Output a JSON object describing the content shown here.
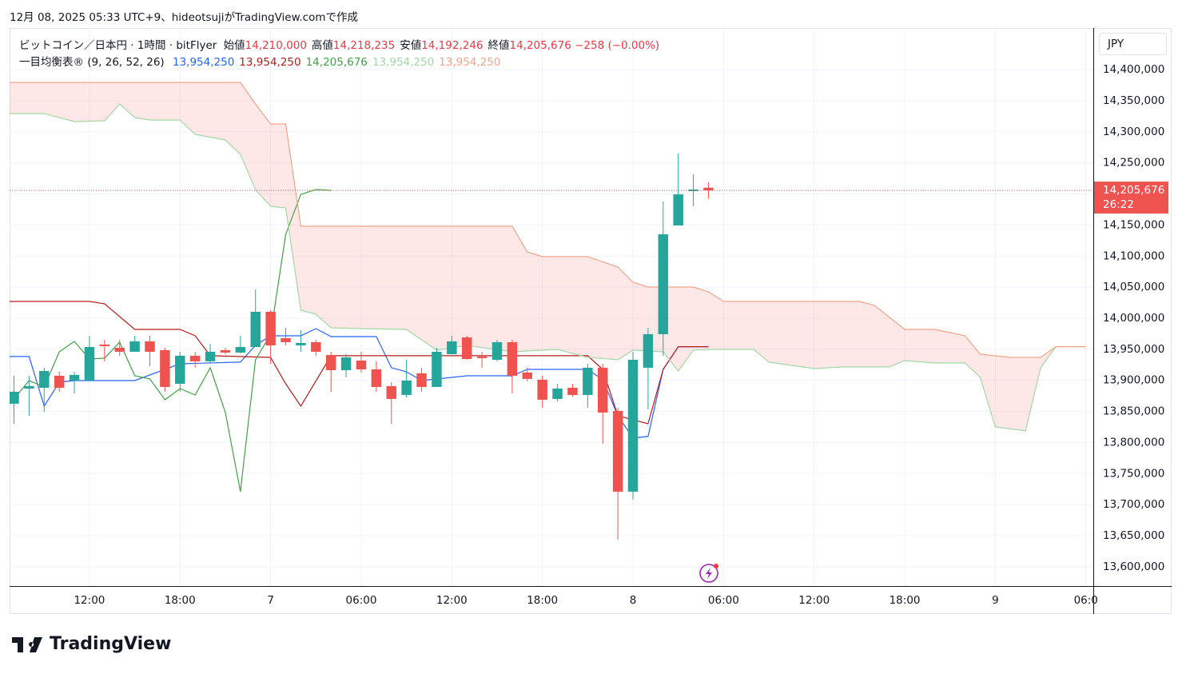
{
  "header": {
    "created": "12月 08, 2025 05:33 UTC+9、hideotsujiがTradingView.comで作成",
    "symbol": "ビットコイン／日本円 · 1時間 · bitFlyer",
    "ohlc": [
      {
        "label": "始値",
        "value": "14,210,000"
      },
      {
        "label": "高値",
        "value": "14,218,235"
      },
      {
        "label": "安値",
        "value": "14,192,246"
      },
      {
        "label": "終値",
        "value": "14,205,676"
      }
    ],
    "change": "−258 (−0.00%)",
    "indicator": {
      "label": "一目均衡表® (9, 26, 52, 26)",
      "values": [
        "13,954,250",
        "13,954,250",
        "14,205,676",
        "13,954,250",
        "13,954,250"
      ]
    }
  },
  "chart_data": {
    "type": "candlestick",
    "up_color": "#26a69a",
    "down_color": "#ef5350",
    "x": [
      7,
      8,
      9,
      10,
      11,
      12,
      13,
      14,
      15,
      16,
      17,
      18,
      19,
      20,
      21,
      22,
      23,
      24,
      25,
      26,
      27,
      28,
      29,
      30,
      31,
      32,
      33,
      34,
      35,
      36,
      37,
      38,
      39,
      40,
      41,
      42,
      43,
      44,
      45,
      46,
      47,
      48,
      49,
      50,
      51,
      52,
      53
    ],
    "open": [
      13862400,
      13886800,
      13888100,
      13907400,
      13899700,
      13899700,
      13957600,
      13952400,
      13946000,
      13962700,
      13948600,
      13894500,
      13939600,
      13930600,
      13948600,
      13944700,
      13953700,
      14010300,
      13967900,
      13956300,
      13961400,
      13940800,
      13916400,
      13931800,
      13917700,
      13890700,
      13876500,
      13911300,
      13889400,
      13942100,
      13969100,
      13938300,
      13933100,
      13961400,
      13912600,
      13901000,
      13870100,
      13888100,
      13876500,
      13920300,
      13850800,
      13720900,
      13920300,
      13974300,
      14149200,
      14204500,
      14210000
    ],
    "high": [
      13907400,
      13907400,
      13920300,
      13913800,
      13913800,
      13971700,
      13965300,
      13965300,
      13971700,
      13971700,
      13952400,
      13946000,
      13946000,
      13958900,
      13952400,
      13971700,
      14046300,
      14012900,
      13984600,
      13980700,
      13965300,
      13946000,
      13942100,
      13946000,
      13930600,
      13897100,
      13933100,
      13920300,
      13952400,
      13971700,
      13971700,
      13946000,
      13965300,
      13965300,
      13920300,
      13907400,
      13894500,
      13894500,
      13926700,
      13926700,
      13856000,
      13946000,
      13984600,
      14187800,
      14264900,
      14231500,
      14218235
    ],
    "low": [
      13830200,
      13843100,
      13849500,
      13881700,
      13879100,
      13899700,
      13930600,
      13939600,
      13946000,
      13922800,
      13881700,
      13881700,
      13920300,
      13926700,
      13942100,
      13943400,
      13953700,
      13926700,
      13956300,
      13946000,
      13939600,
      13881700,
      13904800,
      13912600,
      13881700,
      13830200,
      13872700,
      13881700,
      13889400,
      13942100,
      13933100,
      13920300,
      13930600,
      13879100,
      13898400,
      13856000,
      13866300,
      13874000,
      13856000,
      13798100,
      13643800,
      13708100,
      13853400,
      13939600,
      14149200,
      14180000,
      14192246
    ],
    "close": [
      13881700,
      13890700,
      13915100,
      13888100,
      13908700,
      13953700,
      13955000,
      13946000,
      13962700,
      13946000,
      13889400,
      13939600,
      13930600,
      13946000,
      13944700,
      13953700,
      14010300,
      13956300,
      13961400,
      13960100,
      13946000,
      13916400,
      13937000,
      13917700,
      13889400,
      13870100,
      13899700,
      13889400,
      13946000,
      13962700,
      13934400,
      13935700,
      13961400,
      13907400,
      13902300,
      13868800,
      13886800,
      13876500,
      13920300,
      13848200,
      13720900,
      13933100,
      13974300,
      14135000,
      14199300,
      14207000,
      14205676
    ],
    "lines": [
      {
        "color": "#2962ff",
        "x": [
          6.7,
          8,
          9,
          10,
          11,
          15,
          18,
          22,
          23,
          24,
          26,
          27,
          28,
          31,
          32,
          33,
          34,
          37,
          40,
          41,
          45,
          46,
          47,
          48,
          49,
          50,
          51,
          53
        ],
        "values": [
          13938300,
          13938300,
          13858500,
          13897100,
          13899700,
          13899700,
          13926700,
          13929300,
          13956300,
          13971700,
          13971700,
          13983300,
          13970400,
          13970400,
          13920300,
          13913800,
          13899700,
          13907400,
          13907400,
          13917700,
          13917700,
          13901000,
          13843100,
          13807100,
          13809700,
          13917700,
          13954250,
          13954250
        ]
      },
      {
        "color": "#b71c1c",
        "x": [
          6.7,
          12,
          13,
          15,
          18,
          19,
          20,
          24,
          25,
          26,
          28,
          45,
          46,
          47,
          49,
          50,
          51,
          53
        ],
        "values": [
          14027000,
          14027000,
          14023100,
          13982000,
          13982000,
          13971700,
          13939600,
          13937000,
          13894500,
          13858500,
          13939600,
          13939600,
          13917700,
          13843100,
          13830200,
          13917700,
          13954250,
          13954250
        ]
      },
      {
        "color": "#43a047",
        "x": [
          7,
          8,
          9,
          10,
          11,
          12,
          13,
          14,
          15,
          16,
          17,
          18,
          19,
          20,
          21,
          22,
          23,
          24,
          25,
          26,
          27,
          28
        ],
        "values": [
          13870100,
          13899700,
          13889400,
          13946000,
          13962700,
          13934400,
          13935700,
          13961400,
          13907400,
          13902300,
          13868800,
          13886800,
          13876500,
          13920300,
          13848200,
          13720900,
          13933100,
          13974300,
          14135000,
          14199300,
          14207000,
          14205676
        ]
      },
      {
        "color": "#a5d6a7",
        "x": [
          6.7,
          9,
          11,
          13,
          14,
          15,
          16,
          18,
          19,
          21,
          22,
          23,
          24,
          25,
          26,
          27,
          28,
          30,
          33,
          34,
          35,
          37,
          40,
          43,
          45,
          47,
          48,
          50,
          51,
          52,
          53,
          56,
          57,
          60,
          62,
          65,
          66,
          68,
          70,
          71,
          72,
          74,
          75,
          76,
          78
        ],
        "values": [
          14329200,
          14329200,
          14316400,
          14317600,
          14344600,
          14322800,
          14318900,
          14318900,
          14295800,
          14286800,
          14263600,
          14207000,
          14180000,
          14177500,
          14012900,
          14006400,
          13984600,
          13983300,
          13982000,
          13965300,
          13948600,
          13956300,
          13946000,
          13949800,
          13937000,
          13933100,
          13948600,
          13946000,
          13915100,
          13948600,
          13949800,
          13949800,
          13929300,
          13919000,
          13921600,
          13921600,
          13931800,
          13928000,
          13928000,
          13904800,
          13825100,
          13818700,
          13920300,
          13954250,
          13954250
        ]
      },
      {
        "color": "#f0a58a",
        "x": [
          6.7,
          22,
          23,
          24,
          25,
          26,
          40,
          41,
          42,
          45,
          47,
          48,
          49,
          52,
          53,
          54,
          63,
          64,
          66,
          68,
          70,
          71,
          73,
          75,
          76,
          78
        ],
        "values": [
          14379400,
          14379400,
          14344600,
          14312500,
          14312500,
          14147900,
          14147900,
          14106700,
          14099000,
          14099000,
          14082300,
          14057900,
          14050200,
          14050200,
          14042400,
          14027000,
          14027000,
          14020600,
          13982000,
          13982000,
          13971700,
          13942100,
          13937000,
          13937000,
          13954250,
          13954250
        ]
      }
    ],
    "cloud_color": "rgba(244,67,54,0.12)",
    "xlim": [
      6.71,
      78.49
    ],
    "ylim": [
      13569000,
      14467000
    ],
    "xticks": [
      {
        "value": 12,
        "label": "12:00"
      },
      {
        "value": 18,
        "label": "18:00"
      },
      {
        "value": 24,
        "label": "7"
      },
      {
        "value": 30,
        "label": "06:00"
      },
      {
        "value": 36,
        "label": "12:00"
      },
      {
        "value": 42,
        "label": "18:00"
      },
      {
        "value": 48,
        "label": "8"
      },
      {
        "value": 54,
        "label": "06:00"
      },
      {
        "value": 60,
        "label": "12:00"
      },
      {
        "value": 66,
        "label": "18:00"
      },
      {
        "value": 72,
        "label": "9"
      },
      {
        "value": 78,
        "label": "06:0"
      }
    ],
    "yticks": [
      {
        "value": 13600000,
        "label": "13,600,000"
      },
      {
        "value": 13650000,
        "label": "13,650,000"
      },
      {
        "value": 13700000,
        "label": "13,700,000"
      },
      {
        "value": 13750000,
        "label": "13,750,000"
      },
      {
        "value": 13800000,
        "label": "13,800,000"
      },
      {
        "value": 13850000,
        "label": "13,850,000"
      },
      {
        "value": 13900000,
        "label": "13,900,000"
      },
      {
        "value": 13950000,
        "label": "13,950,000"
      },
      {
        "value": 14000000,
        "label": "14,000,000"
      },
      {
        "value": 14050000,
        "label": "14,050,000"
      },
      {
        "value": 14100000,
        "label": "14,100,000"
      },
      {
        "value": 14150000,
        "label": "14,150,000"
      },
      {
        "value": 14200000,
        "label": "14,200,000"
      },
      {
        "value": 14250000,
        "label": "14,250,000"
      },
      {
        "value": 14300000,
        "label": "14,300,000"
      },
      {
        "value": 14350000,
        "label": "14,350,000"
      },
      {
        "value": 14400000,
        "label": "14,400,000"
      }
    ],
    "grid": true,
    "currency": "JPY",
    "last_price": {
      "value": 14205676,
      "label": "14,205,676"
    },
    "countdown": "26:22"
  },
  "brand": "TradingView"
}
